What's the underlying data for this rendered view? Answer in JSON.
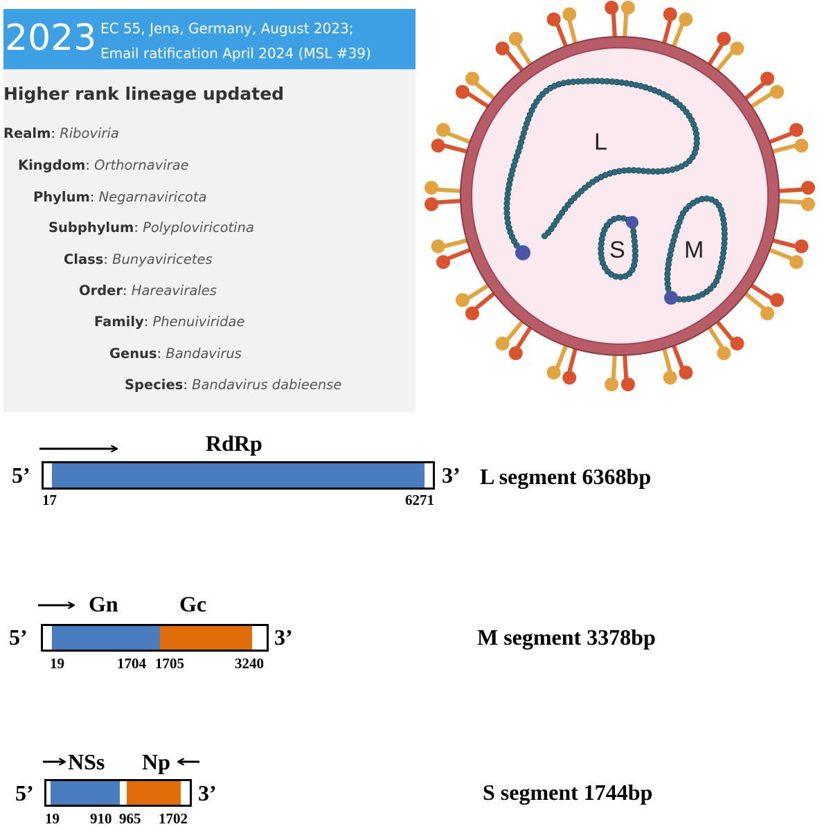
{
  "taxonomy": {
    "year": "2023",
    "meeting_line1": "EC 55, Jena, Germany, August 2023;",
    "meeting_line2": "Email ratification April 2024 (MSL #39)",
    "heading": "Higher rank lineage updated",
    "ranks": [
      {
        "rank": "Realm",
        "name": "Riboviria"
      },
      {
        "rank": "Kingdom",
        "name": "Orthornavirae"
      },
      {
        "rank": "Phylum",
        "name": "Negarnaviricota"
      },
      {
        "rank": "Subphylum",
        "name": "Polyploviricotina"
      },
      {
        "rank": "Class",
        "name": "Bunyaviricetes"
      },
      {
        "rank": "Order",
        "name": "Hareavirales"
      },
      {
        "rank": "Family",
        "name": "Phenuiviridae"
      },
      {
        "rank": "Genus",
        "name": "Bandavirus"
      },
      {
        "rank": "Species",
        "name": "Bandavirus dabieense"
      }
    ],
    "separator": ": "
  },
  "virion": {
    "segment_labels": {
      "L": "L",
      "S": "S",
      "M": "M"
    },
    "colors": {
      "envelope": "#b85c68",
      "interior": "#fbe9f0",
      "rna": "#2d6a7e",
      "terminus": "#4a56a8",
      "spike_orange": "#e2a341",
      "spike_red": "#d9542e"
    }
  },
  "segments": {
    "five_prime": "5’",
    "three_prime": "3’",
    "L": {
      "title": "L segment 6368bp",
      "gene": "RdRp",
      "start": "17",
      "end": "6271"
    },
    "M": {
      "title": "M segment 3378bp",
      "gene1": "Gn",
      "gene2": "Gc",
      "n1": "19",
      "n2": "1704",
      "n3": "1705",
      "n4": "3240"
    },
    "S": {
      "title": "S segment 1744bp",
      "gene1": "NSs",
      "gene2": "Np",
      "n1": "19",
      "n2": "910",
      "n3": "965",
      "n4": "1702"
    },
    "colors": {
      "blue": "#4a7dc0",
      "orange": "#e06c0a"
    }
  }
}
